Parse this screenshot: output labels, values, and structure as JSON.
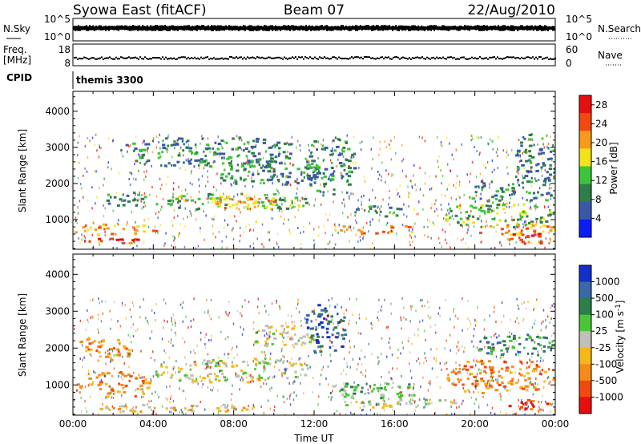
{
  "header": {
    "radar": "Syowa East (fitACF)",
    "beam": "Beam 07",
    "date": "22/Aug/2010"
  },
  "nsky_panel": {
    "left_label": "N.Sky",
    "left_ticks": [
      "10^5",
      "10^0"
    ],
    "right_ticks": [
      "10^5",
      "10^0"
    ],
    "right_label": "N.Search"
  },
  "freq_panel": {
    "left_label_top": "Freq.",
    "left_label_bottom": "[MHz]",
    "left_ticks": [
      "18",
      "8"
    ],
    "right_ticks": [
      "60",
      "0"
    ],
    "right_label": "Nave"
  },
  "cpid_panel": {
    "label": "CPID",
    "value": "themis 3300"
  },
  "chart_data": [
    {
      "type": "heatmap",
      "name": "power",
      "ylabel": "Slant Range [km]",
      "xlabel": "",
      "y_ticks": [
        "1000",
        "2000",
        "3000",
        "4000"
      ],
      "ylim": [
        180,
        4550
      ],
      "xlim_hours": [
        0,
        24
      ],
      "colorbar": {
        "label": "Power [dB]",
        "ticks": [
          "4",
          "8",
          "12",
          "16",
          "20",
          "24",
          "28"
        ],
        "range": [
          0,
          30
        ],
        "colors": [
          "#0b1df7",
          "#3a58a8",
          "#2e7d4a",
          "#3ec43a",
          "#f3e21c",
          "#f59a1c",
          "#f04a12",
          "#e60f0f"
        ]
      },
      "features": [
        {
          "t": [
            1.6,
            3.7
          ],
          "r": [
            1400,
            1800
          ],
          "level": 2
        },
        {
          "t": [
            4.0,
            11.6
          ],
          "r": [
            1300,
            1750
          ],
          "level": 3
        },
        {
          "t": [
            6.0,
            10.0
          ],
          "r": [
            1350,
            1650
          ],
          "level": 5
        },
        {
          "t": [
            0.0,
            4.2
          ],
          "r": [
            600,
            900
          ],
          "level": 5
        },
        {
          "t": [
            0.5,
            3.6
          ],
          "r": [
            350,
            520
          ],
          "level": 6
        },
        {
          "t": [
            2.3,
            11.0
          ],
          "r": [
            2500,
            3300
          ],
          "level": 2
        },
        {
          "t": [
            7.0,
            12.5
          ],
          "r": [
            2000,
            2700
          ],
          "level": 2
        },
        {
          "t": [
            11.5,
            14.0
          ],
          "r": [
            1700,
            3300
          ],
          "level": 2
        },
        {
          "t": [
            13.0,
            17.0
          ],
          "r": [
            650,
            900
          ],
          "level": 5
        },
        {
          "t": [
            14.0,
            16.5
          ],
          "r": [
            1100,
            1400
          ],
          "level": 2
        },
        {
          "t": [
            18.5,
            24.0
          ],
          "r": [
            800,
            1500
          ],
          "level": 3
        },
        {
          "t": [
            19.5,
            22.0
          ],
          "r": [
            1500,
            2100
          ],
          "level": 2
        },
        {
          "t": [
            20.0,
            24.0
          ],
          "r": [
            600,
            900
          ],
          "level": 5
        },
        {
          "t": [
            21.5,
            24.0
          ],
          "r": [
            350,
            650
          ],
          "level": 6
        },
        {
          "t": [
            22.0,
            24.0
          ],
          "r": [
            1500,
            3400
          ],
          "level": 2
        }
      ]
    },
    {
      "type": "heatmap",
      "name": "velocity",
      "ylabel": "Slant Range [km]",
      "xlabel": "Time UT",
      "x_ticks": [
        "00:00",
        "04:00",
        "08:00",
        "12:00",
        "16:00",
        "20:00",
        "00:00"
      ],
      "y_ticks": [
        "1000",
        "2000",
        "3000",
        "4000"
      ],
      "ylim": [
        180,
        4550
      ],
      "xlim_hours": [
        0,
        24
      ],
      "colorbar": {
        "label": "Velocity [m s^-1]",
        "ticks": [
          "1000",
          "500",
          "100",
          "25",
          "-25",
          "-100",
          "-500",
          "-1000"
        ],
        "colors": [
          "#1530c8",
          "#3a68a8",
          "#2e7d4a",
          "#4cc43a",
          "#c0c0b8",
          "#f5b81c",
          "#f58a1c",
          "#f04a12",
          "#e60f0f"
        ]
      },
      "features": [
        {
          "t": [
            4.0,
            11.6
          ],
          "r": [
            1100,
            1750
          ],
          "level": 4
        },
        {
          "t": [
            9.0,
            12.0
          ],
          "r": [
            2000,
            2700
          ],
          "level": 4
        },
        {
          "t": [
            0.0,
            4.0
          ],
          "r": [
            700,
            1400
          ],
          "level": 6
        },
        {
          "t": [
            1.0,
            9.0
          ],
          "r": [
            300,
            500
          ],
          "level": 5
        },
        {
          "t": [
            0.2,
            3.0
          ],
          "r": [
            1700,
            2300
          ],
          "level": 6
        },
        {
          "t": [
            11.5,
            13.5
          ],
          "r": [
            1900,
            3200
          ],
          "level": 1
        },
        {
          "t": [
            12.5,
            17.0
          ],
          "r": [
            650,
            1100
          ],
          "level": 3
        },
        {
          "t": [
            13.5,
            19.0
          ],
          "r": [
            400,
            650
          ],
          "level": 4
        },
        {
          "t": [
            18.5,
            24.0
          ],
          "r": [
            800,
            1700
          ],
          "level": 6
        },
        {
          "t": [
            20.0,
            24.0
          ],
          "r": [
            1800,
            2400
          ],
          "level": 2
        },
        {
          "t": [
            21.5,
            24.0
          ],
          "r": [
            350,
            650
          ],
          "level": 7
        }
      ]
    }
  ]
}
